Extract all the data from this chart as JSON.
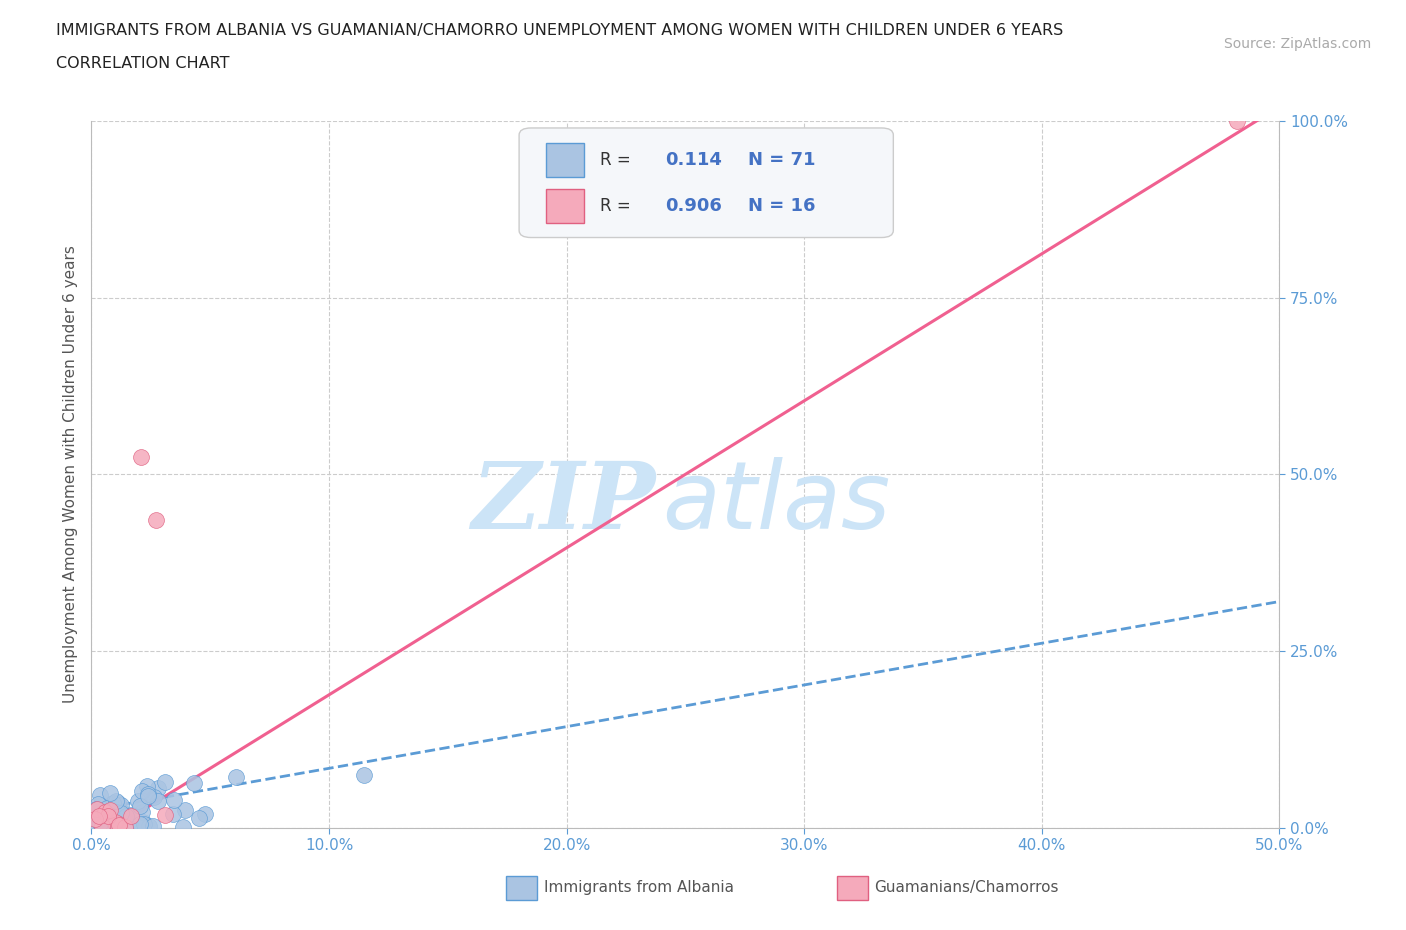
{
  "title_line1": "IMMIGRANTS FROM ALBANIA VS GUAMANIAN/CHAMORRO UNEMPLOYMENT AMONG WOMEN WITH CHILDREN UNDER 6 YEARS",
  "title_line2": "CORRELATION CHART",
  "source": "Source: ZipAtlas.com",
  "ylabel": "Unemployment Among Women with Children Under 6 years",
  "r_albania": 0.114,
  "n_albania": 71,
  "r_guam": 0.906,
  "n_guam": 16,
  "legend_labels": [
    "Immigrants from Albania",
    "Guamanians/Chamorros"
  ],
  "color_albania": "#aac4e2",
  "color_guam": "#f5aabb",
  "color_albania_line": "#5b9bd5",
  "color_guam_line": "#f06090",
  "color_text_blue": "#4472C4",
  "watermark_color": "#cce0f5",
  "background_color": "#ffffff",
  "grid_color": "#cccccc",
  "xlim": [
    0.0,
    0.5
  ],
  "ylim": [
    0.0,
    1.0
  ],
  "xticks": [
    0.0,
    0.1,
    0.2,
    0.3,
    0.4,
    0.5
  ],
  "yticks": [
    0.0,
    0.25,
    0.5,
    0.75,
    1.0
  ],
  "xticklabels": [
    "0.0%",
    "10.0%",
    "20.0%",
    "30.0%",
    "40.0%",
    "50.0%"
  ],
  "yticklabels": [
    "0.0%",
    "25.0%",
    "50.0%",
    "75.0%",
    "100.0%"
  ],
  "albania_trend_x": [
    0.0,
    0.5
  ],
  "albania_trend_y": [
    0.025,
    0.32
  ],
  "guam_trend_x": [
    0.0,
    0.5
  ],
  "guam_trend_y": [
    -0.02,
    1.02
  ]
}
